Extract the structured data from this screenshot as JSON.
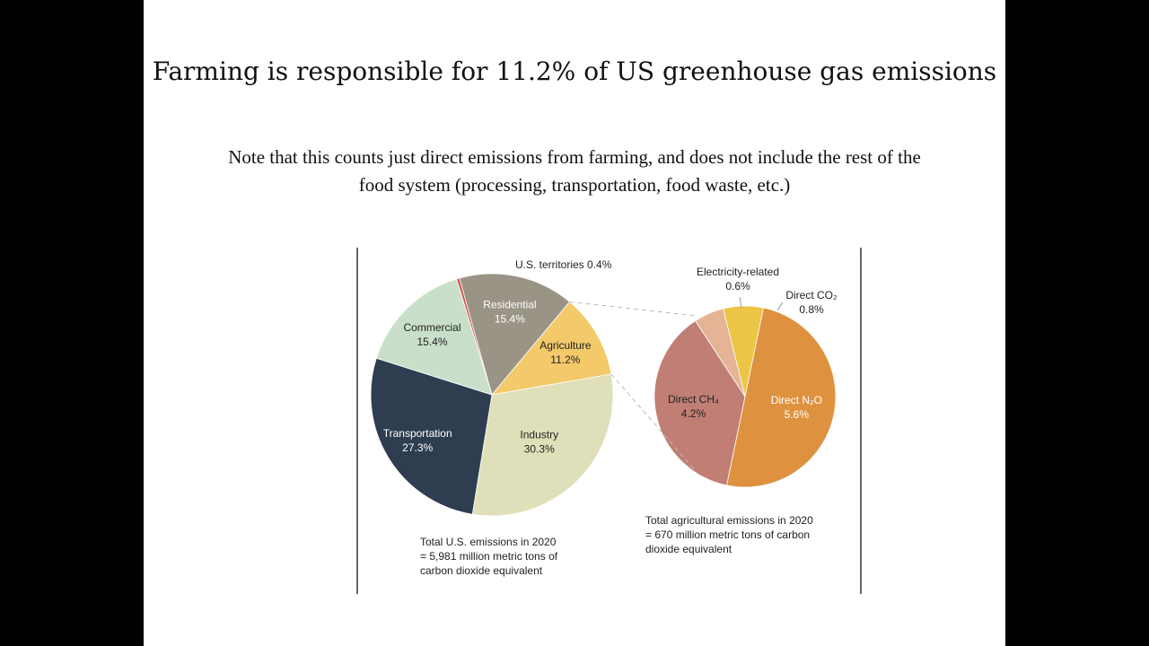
{
  "title": "Farming is responsible for 11.2% of US greenhouse gas emissions",
  "subtitle": "Note that this counts just direct emissions from farming, and does not include the rest of the food system (processing, transportation, food waste, etc.)",
  "chart_data": [
    {
      "type": "pie",
      "title": "Total U.S. emissions in 2020",
      "note_lines": [
        "Total U.S. emissions in 2020",
        "= 5,981 million metric tons of",
        "carbon dioxide equivalent"
      ],
      "slices": [
        {
          "name": "U.S. territories",
          "value": 0.4,
          "pct_label": "0.4%",
          "color": "#d9534f"
        },
        {
          "name": "Residential",
          "value": 15.4,
          "pct_label": "15.4%",
          "color": "#9a9486"
        },
        {
          "name": "Agriculture",
          "value": 11.2,
          "pct_label": "11.2%",
          "color": "#f3c96a"
        },
        {
          "name": "Industry",
          "value": 30.3,
          "pct_label": "30.3%",
          "color": "#dfe0b9"
        },
        {
          "name": "Transportation",
          "value": 27.3,
          "pct_label": "27.3%",
          "color": "#2f3d51"
        },
        {
          "name": "Commercial",
          "value": 15.4,
          "pct_label": "15.4%",
          "color": "#c9dfc9"
        }
      ]
    },
    {
      "type": "pie",
      "title": "Total agricultural emissions in 2020",
      "note_lines": [
        "Total agricultural emissions in 2020",
        "= 670 million metric tons of carbon",
        "dioxide equivalent"
      ],
      "slices": [
        {
          "name": "Direct CO₂",
          "value": 0.8,
          "pct_label": "0.8%",
          "color": "#ebc545"
        },
        {
          "name": "Direct N₂O",
          "value": 5.6,
          "pct_label": "5.6%",
          "color": "#de9240"
        },
        {
          "name": "Direct CH₄",
          "value": 4.2,
          "pct_label": "4.2%",
          "color": "#c07e74"
        },
        {
          "name": "Electricity-related",
          "value": 0.6,
          "pct_label": "0.6%",
          "color": "#e4b495"
        }
      ]
    }
  ]
}
